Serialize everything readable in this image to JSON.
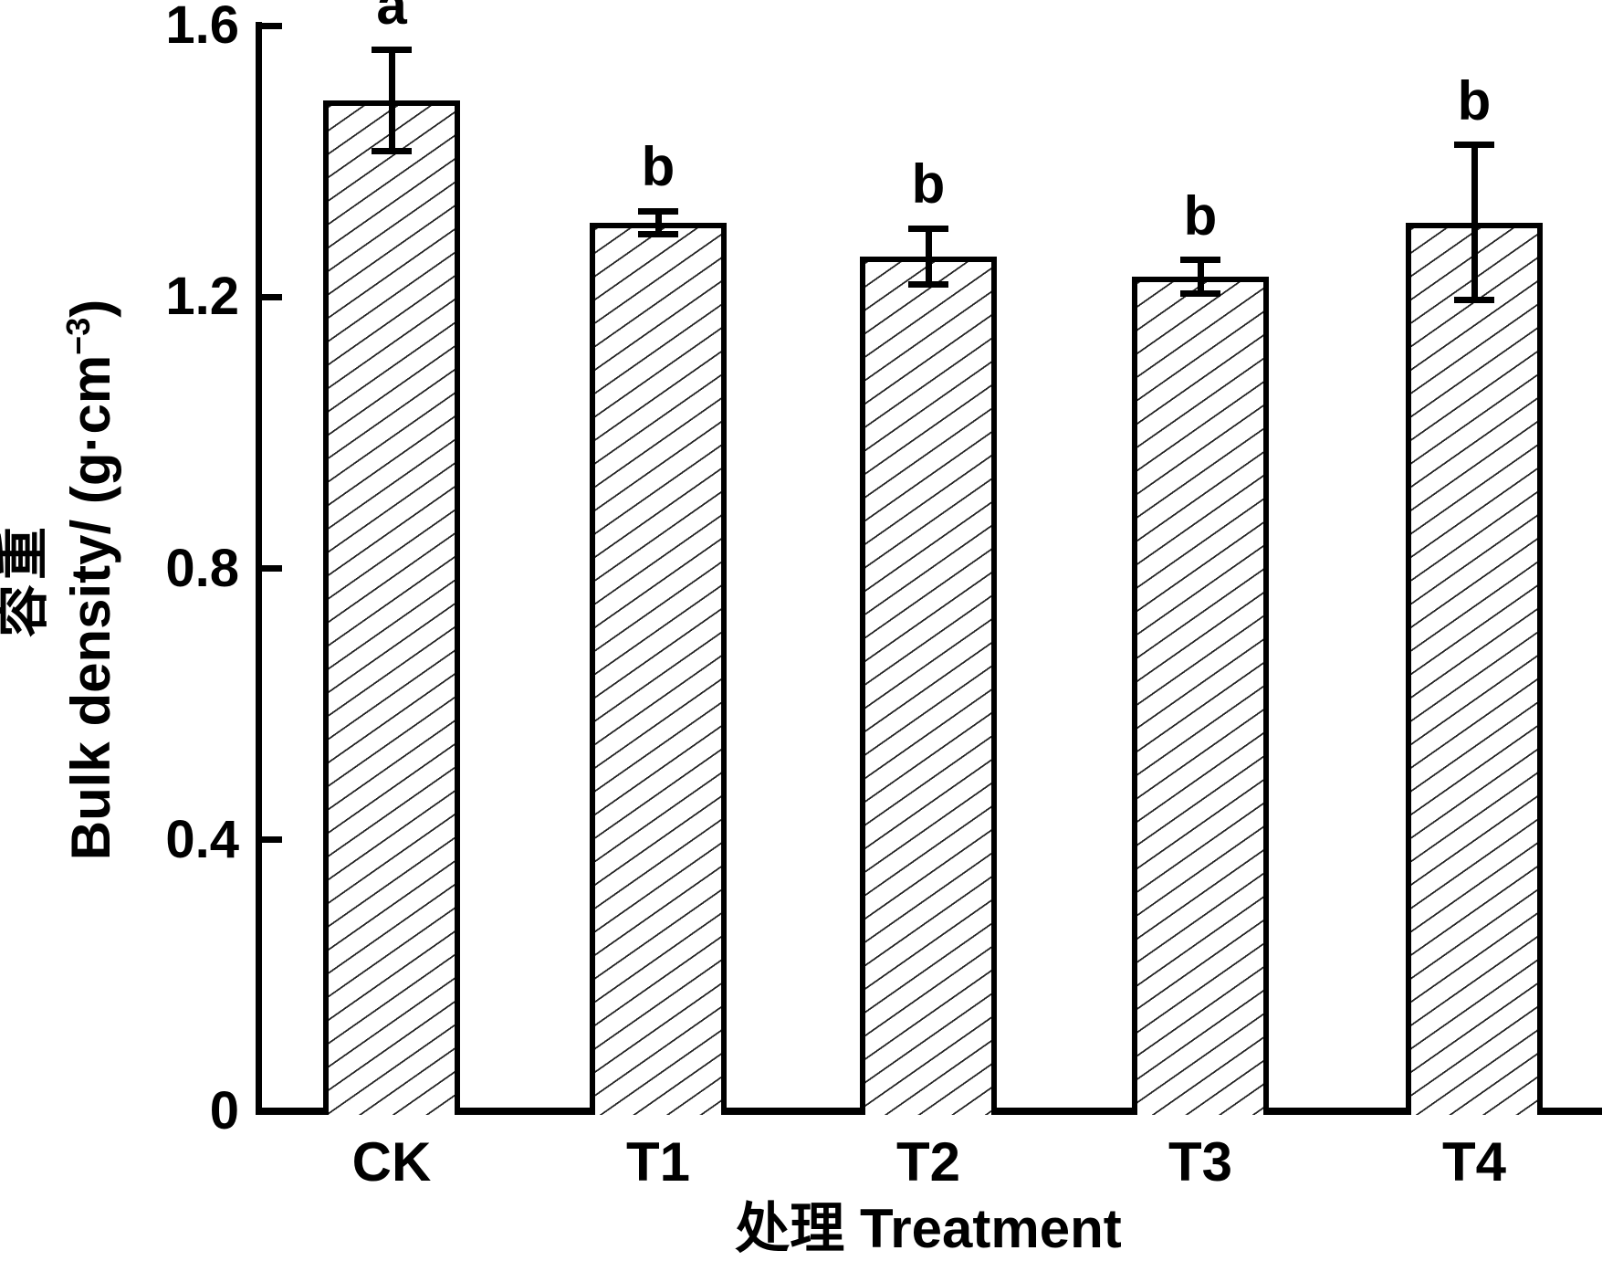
{
  "chart_data": {
    "type": "bar",
    "title": "",
    "categories": [
      "CK",
      "T1",
      "T2",
      "T3",
      "T4"
    ],
    "values": [
      1.49,
      1.31,
      1.26,
      1.23,
      1.31
    ],
    "errors": [
      0.075,
      0.017,
      0.041,
      0.025,
      0.114
    ],
    "sig_letters": [
      "a",
      "b",
      "b",
      "b",
      "b"
    ],
    "xlabel": "处理 Treatment",
    "ylabel_cn": "容重",
    "ylabel_en_main": "Bulk density/ (g·cm",
    "ylabel_en_sup": "−3",
    "ylabel_en_close": ")",
    "yticks": [
      0,
      0.4,
      0.8,
      1.2,
      1.6
    ],
    "ytick_labels": [
      "0",
      "0.4",
      "0.8",
      "1.2",
      "1.6"
    ],
    "ylim": [
      0,
      1.6
    ],
    "grid": "off",
    "legend": "none",
    "bar_fill": "diagonal-hatch",
    "axis_color": "#000000",
    "background_color": "#ffffff"
  }
}
